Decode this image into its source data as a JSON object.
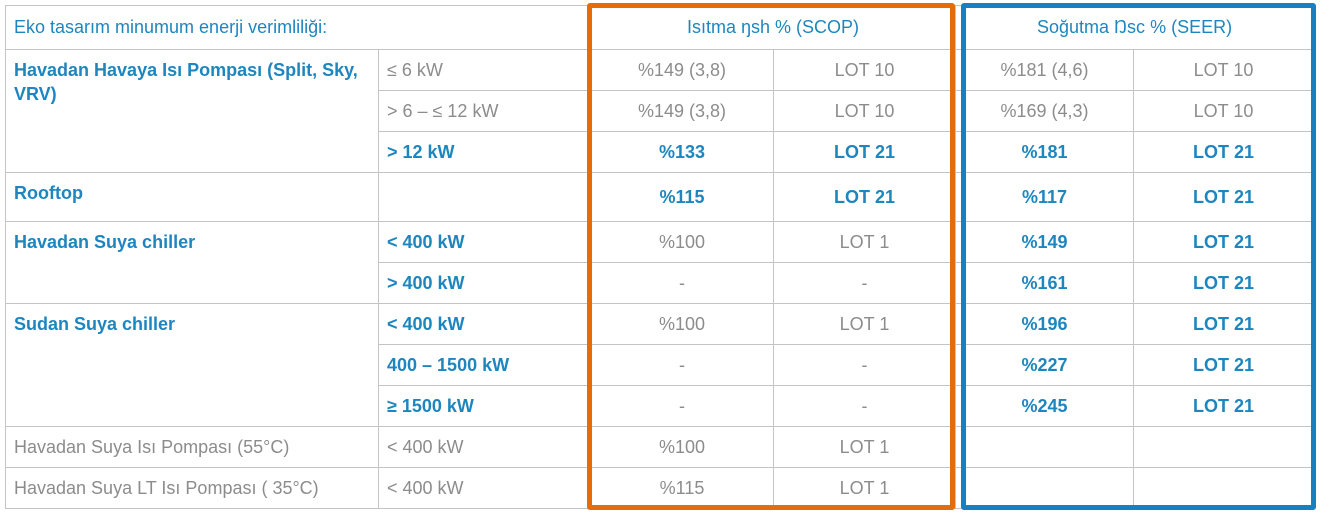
{
  "header": {
    "title": "Eko tasarım minumum enerji verimliliği:",
    "heating": "Isıtma  ŋsh % (SCOP)",
    "cooling": "Soğutma Ŋsc % (SEER)"
  },
  "groups": [
    {
      "label": "Havadan Havaya Isı Pompası (Split, Sky, VRV)",
      "rows": [
        {
          "range": "≤ 6  kW",
          "heating": [
            "%149 (3,8)",
            "LOT 10"
          ],
          "cooling": [
            "%181 (4,6)",
            "LOT 10"
          ]
        },
        {
          "range": "> 6 –  ≤ 12 kW",
          "heating": [
            "%149 (3,8)",
            "LOT 10"
          ],
          "cooling": [
            "%169 (4,3)",
            "LOT 10"
          ]
        },
        {
          "range": "> 12 kW",
          "heating": [
            "%133",
            "LOT 21"
          ],
          "cooling": [
            "%181",
            "LOT 21"
          ]
        }
      ]
    },
    {
      "label": "Rooftop",
      "rows": [
        {
          "heating": [
            "%115",
            "LOT 21"
          ],
          "cooling": [
            "%117",
            "LOT 21"
          ]
        }
      ]
    },
    {
      "label": "Havadan Suya chiller",
      "rows": [
        {
          "range": "< 400 kW",
          "heating": [
            "%100",
            "LOT 1"
          ],
          "cooling": [
            "%149",
            "LOT 21"
          ]
        },
        {
          "range": "> 400 kW",
          "heating": [
            "-",
            "-"
          ],
          "cooling": [
            "%161",
            "LOT 21"
          ]
        }
      ]
    },
    {
      "label": "Sudan Suya chiller",
      "rows": [
        {
          "range": "< 400 kW",
          "heating": [
            "%100",
            "LOT 1"
          ],
          "cooling": [
            "%196",
            "LOT 21"
          ]
        },
        {
          "range": "400 – 1500 kW",
          "heating": [
            "-",
            "-"
          ],
          "cooling": [
            "%227",
            "LOT 21"
          ]
        },
        {
          "range": "≥ 1500 kW",
          "heating": [
            "-",
            "-"
          ],
          "cooling": [
            "%245",
            "LOT 21"
          ]
        }
      ]
    },
    {
      "label": "Havadan Suya Isı Pompası (55°C)",
      "rows": [
        {
          "range": "< 400 kW",
          "heating": [
            "%100",
            "LOT 1"
          ]
        }
      ]
    },
    {
      "label": "Havadan Suya LT Isı Pompası ( 35°C)",
      "rows": [
        {
          "range": "< 400 kW",
          "heating": [
            "%115",
            "LOT 1"
          ]
        }
      ]
    }
  ]
}
